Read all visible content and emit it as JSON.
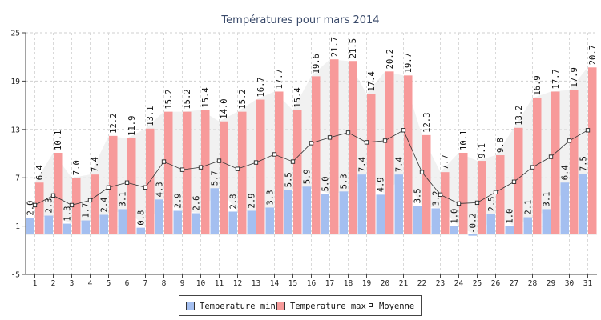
{
  "chart_data": {
    "type": "bar",
    "title": "Températures pour mars 2014",
    "categories": [
      "1",
      "2",
      "3",
      "4",
      "5",
      "6",
      "7",
      "8",
      "9",
      "10",
      "11",
      "12",
      "13",
      "14",
      "15",
      "16",
      "17",
      "18",
      "19",
      "20",
      "21",
      "22",
      "23",
      "24",
      "25",
      "26",
      "27",
      "28",
      "29",
      "30",
      "31"
    ],
    "series": [
      {
        "name": "Temperature min",
        "type": "bar",
        "color": "#a4bff0",
        "values": [
          2.0,
          2.3,
          1.3,
          1.7,
          2.4,
          3.1,
          0.8,
          4.3,
          2.9,
          2.6,
          5.7,
          2.8,
          2.9,
          3.3,
          5.5,
          5.9,
          5.0,
          5.3,
          7.4,
          4.9,
          7.4,
          3.5,
          3.2,
          1.0,
          -0.2,
          2.5,
          1.0,
          2.1,
          3.1,
          6.4,
          7.5
        ]
      },
      {
        "name": "Temperature max",
        "type": "bar",
        "color": "#f79a9a",
        "values": [
          6.4,
          10.1,
          7.0,
          7.4,
          12.2,
          11.9,
          13.1,
          15.2,
          15.2,
          15.4,
          14.0,
          15.2,
          16.7,
          17.7,
          15.4,
          19.6,
          21.7,
          21.5,
          17.4,
          20.2,
          19.7,
          12.3,
          7.7,
          10.1,
          9.1,
          9.8,
          13.2,
          16.9,
          17.7,
          17.9,
          20.7
        ]
      },
      {
        "name": "Moyenne",
        "type": "line",
        "color": "#222222",
        "values": [
          3.6,
          4.8,
          3.6,
          4.2,
          5.8,
          6.4,
          5.8,
          9.0,
          8.0,
          8.3,
          9.1,
          8.1,
          8.9,
          9.9,
          9.0,
          11.3,
          12.0,
          12.6,
          11.4,
          11.6,
          12.9,
          7.7,
          4.9,
          3.8,
          3.9,
          5.2,
          6.5,
          8.3,
          9.6,
          11.6,
          12.9
        ]
      }
    ],
    "yticks": [
      -5,
      1,
      7,
      13,
      19,
      25
    ],
    "ylim": [
      -5,
      25
    ],
    "grid": true,
    "legend_position": "bottom-center"
  }
}
